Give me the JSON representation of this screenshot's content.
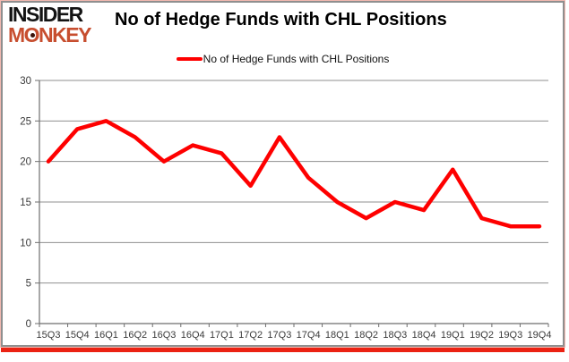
{
  "brand": {
    "line1": "INSIDER",
    "line2": "MONKEY",
    "accent_color": "#C74E2F"
  },
  "header": {
    "title": "No of Hedge Funds with CHL Positions"
  },
  "legend": {
    "label": "No of Hedge Funds with CHL Positions"
  },
  "chart_data": {
    "type": "line",
    "title": "No of Hedge Funds with CHL Positions",
    "categories": [
      "15Q3",
      "15Q4",
      "16Q1",
      "16Q2",
      "16Q3",
      "16Q4",
      "17Q1",
      "17Q2",
      "17Q3",
      "17Q4",
      "18Q1",
      "18Q2",
      "18Q3",
      "18Q4",
      "19Q1",
      "19Q2",
      "19Q3",
      "19Q4"
    ],
    "series": [
      {
        "name": "No of Hedge Funds with CHL Positions",
        "color": "#FE0000",
        "values": [
          20,
          24,
          25,
          23,
          20,
          22,
          21,
          17,
          23,
          18,
          15,
          13,
          15,
          14,
          19,
          13,
          12,
          12
        ]
      }
    ],
    "xlabel": "",
    "ylabel": "",
    "ylim": [
      0,
      30
    ],
    "yticks": [
      0,
      5,
      10,
      15,
      20,
      25,
      30
    ],
    "grid": true,
    "legend_position": "top-center"
  },
  "colors": {
    "line": "#FE0000",
    "gridline": "#8f8f8f",
    "axis": "#6e6e6e",
    "tick_label": "#3a3a3a",
    "border": "#8f8f8f",
    "shadow_red": "#EB2213",
    "shadow_pink": "#F2B8B0",
    "background": "#FFFFFF"
  }
}
